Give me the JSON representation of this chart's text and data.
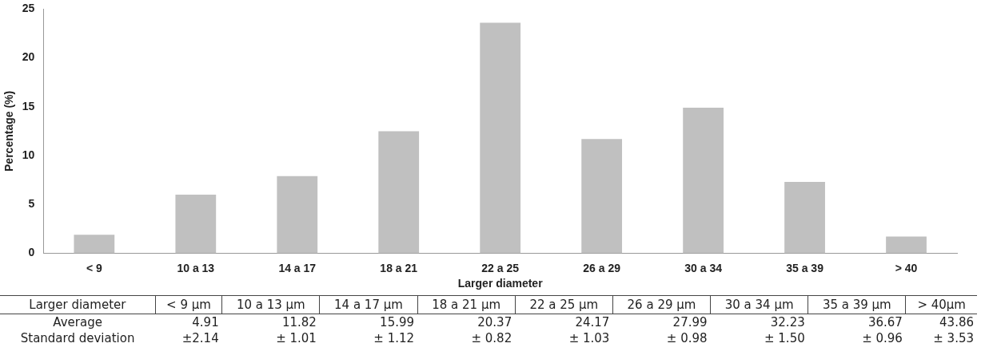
{
  "chart_data": [
    {
      "type": "bar",
      "xlabel": "Larger diameter",
      "ylabel": "Percentage (%)",
      "categories": [
        "< 9",
        "10 a 13",
        "14 a 17",
        "18 a 21",
        "22 a 25",
        "26 a 29",
        "30 a 34",
        "35 a 39",
        "> 40"
      ],
      "values": [
        1.9,
        6.0,
        7.9,
        12.5,
        23.6,
        11.7,
        14.9,
        7.3,
        1.7
      ],
      "color": "#c0c0c0",
      "ylim": [
        0,
        25
      ],
      "yticks": [
        0,
        5,
        10,
        15,
        20,
        25
      ]
    },
    {
      "type": "other",
      "data_labels": true,
      "xlabel": "Larger diameter",
      "categories": [
        "< 9 µm",
        "10 a 13 µm",
        "14 a 17 µm",
        "18 a 21 µm",
        "22 a 25 µm",
        "26 a 29 µm",
        "30 a 34 µm",
        "35 a 39 µm",
        "> 40µm"
      ],
      "series": [
        {
          "name": "Average",
          "values": [
            4.91,
            11.82,
            15.99,
            20.37,
            24.17,
            27.99,
            32.23,
            36.67,
            43.86
          ]
        },
        {
          "name": "Standard deviation",
          "values": [
            2.14,
            1.01,
            1.12,
            0.82,
            1.03,
            0.98,
            1.5,
            0.96,
            3.53
          ],
          "value_labels": [
            "±2.14",
            "± 1.01",
            "± 1.12",
            "± 0.82",
            "± 1.03",
            "± 0.98",
            "± 1.50",
            "± 0.96",
            "± 3.53"
          ]
        }
      ]
    }
  ]
}
